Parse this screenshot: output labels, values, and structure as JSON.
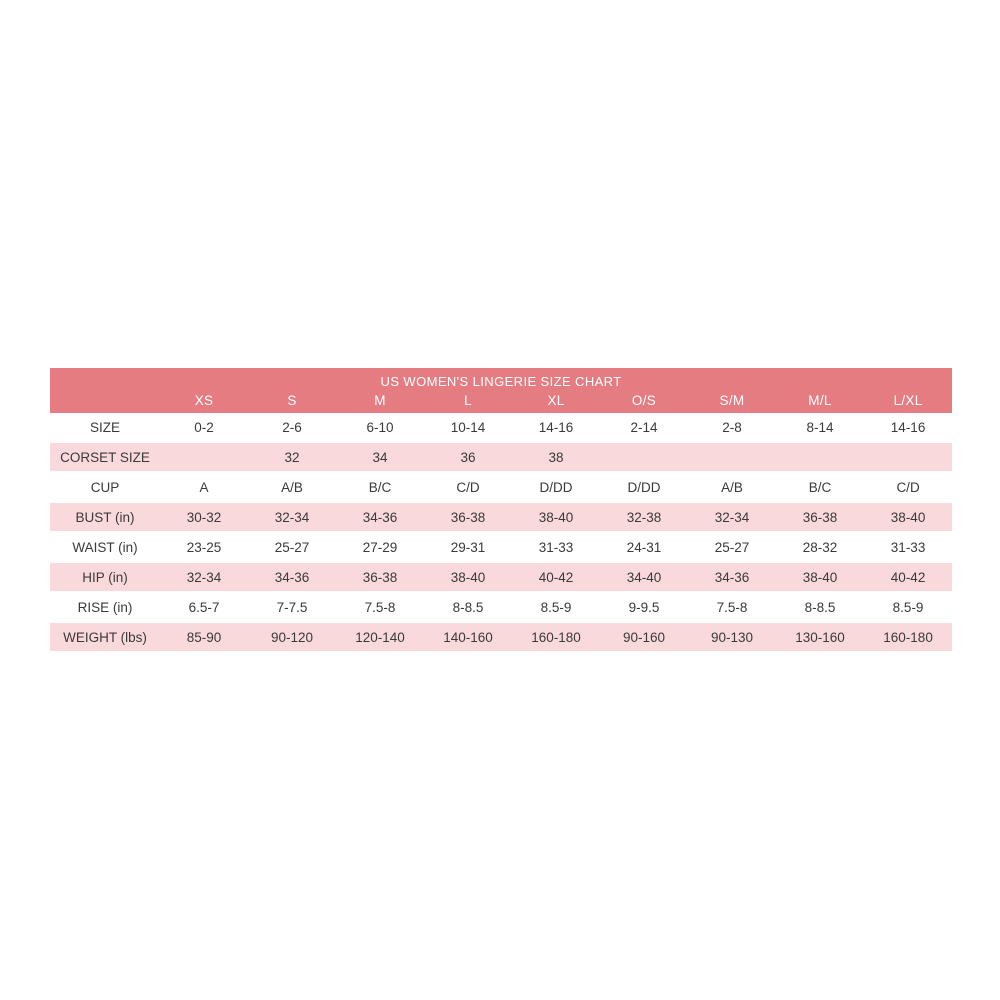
{
  "page": {
    "background_color": "#ffffff"
  },
  "colors": {
    "header_band_bg": "#e47c82",
    "shaded_row_bg": "#fad9dc",
    "header_text": "#ffffff",
    "body_text": "#3a3a3a"
  },
  "table": {
    "title": "US WOMEN'S LINGERIE SIZE CHART",
    "column_headers": [
      "XS",
      "S",
      "M",
      "L",
      "XL",
      "O/S",
      "S/M",
      "M/L",
      "L/XL"
    ],
    "rows": [
      {
        "label": "SIZE",
        "shaded": false,
        "values": [
          "0-2",
          "2-6",
          "6-10",
          "10-14",
          "14-16",
          "2-14",
          "2-8",
          "8-14",
          "14-16"
        ]
      },
      {
        "label": "CORSET SIZE",
        "shaded": true,
        "values": [
          "",
          "32",
          "34",
          "36",
          "38",
          "",
          "",
          "",
          ""
        ]
      },
      {
        "label": "CUP",
        "shaded": false,
        "values": [
          "A",
          "A/B",
          "B/C",
          "C/D",
          "D/DD",
          "D/DD",
          "A/B",
          "B/C",
          "C/D"
        ]
      },
      {
        "label": "BUST (in)",
        "shaded": true,
        "values": [
          "30-32",
          "32-34",
          "34-36",
          "36-38",
          "38-40",
          "32-38",
          "32-34",
          "36-38",
          "38-40"
        ]
      },
      {
        "label": "WAIST (in)",
        "shaded": false,
        "values": [
          "23-25",
          "25-27",
          "27-29",
          "29-31",
          "31-33",
          "24-31",
          "25-27",
          "28-32",
          "31-33"
        ]
      },
      {
        "label": "HIP (in)",
        "shaded": true,
        "values": [
          "32-34",
          "34-36",
          "36-38",
          "38-40",
          "40-42",
          "34-40",
          "34-36",
          "38-40",
          "40-42"
        ]
      },
      {
        "label": "RISE (in)",
        "shaded": false,
        "values": [
          "6.5-7",
          "7-7.5",
          "7.5-8",
          "8-8.5",
          "8.5-9",
          "9-9.5",
          "7.5-8",
          "8-8.5",
          "8.5-9"
        ]
      },
      {
        "label": "WEIGHT (lbs)",
        "shaded": true,
        "values": [
          "85-90",
          "90-120",
          "120-140",
          "140-160",
          "160-180",
          "90-160",
          "90-130",
          "130-160",
          "160-180"
        ]
      }
    ]
  },
  "chart_data": {
    "type": "table",
    "title": "US WOMEN'S LINGERIE SIZE CHART",
    "columns": [
      "",
      "XS",
      "S",
      "M",
      "L",
      "XL",
      "O/S",
      "S/M",
      "M/L",
      "L/XL"
    ],
    "rows": [
      [
        "SIZE",
        "0-2",
        "2-6",
        "6-10",
        "10-14",
        "14-16",
        "2-14",
        "2-8",
        "8-14",
        "14-16"
      ],
      [
        "CORSET SIZE",
        "",
        "32",
        "34",
        "36",
        "38",
        "",
        "",
        "",
        ""
      ],
      [
        "CUP",
        "A",
        "A/B",
        "B/C",
        "C/D",
        "D/DD",
        "D/DD",
        "A/B",
        "B/C",
        "C/D"
      ],
      [
        "BUST (in)",
        "30-32",
        "32-34",
        "34-36",
        "36-38",
        "38-40",
        "32-38",
        "32-34",
        "36-38",
        "38-40"
      ],
      [
        "WAIST (in)",
        "23-25",
        "25-27",
        "27-29",
        "29-31",
        "31-33",
        "24-31",
        "25-27",
        "28-32",
        "31-33"
      ],
      [
        "HIP (in)",
        "32-34",
        "34-36",
        "36-38",
        "38-40",
        "40-42",
        "34-40",
        "34-36",
        "38-40",
        "40-42"
      ],
      [
        "RISE (in)",
        "6.5-7",
        "7-7.5",
        "7.5-8",
        "8-8.5",
        "8.5-9",
        "9-9.5",
        "7.5-8",
        "8-8.5",
        "8.5-9"
      ],
      [
        "WEIGHT (lbs)",
        "85-90",
        "90-120",
        "120-140",
        "140-160",
        "160-180",
        "90-160",
        "90-130",
        "130-160",
        "160-180"
      ]
    ],
    "layout": {
      "shaded_rows": [
        "CORSET SIZE",
        "BUST (in)",
        "HIP (in)",
        "WEIGHT (lbs)"
      ],
      "header_band_color": "#e47c82",
      "shaded_row_color": "#fad9dc",
      "grid": "none"
    }
  }
}
